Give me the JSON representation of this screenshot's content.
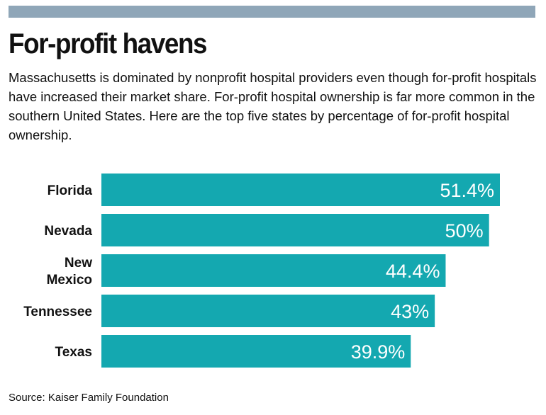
{
  "title": "For-profit havens",
  "description": "Massachusetts is dominated by nonprofit hospital providers even though for-profit hospitals have increased their market share. For-profit hospital ownership is far more common in the southern United States. Here are the top five states by percentage of for-profit hospital ownership.",
  "source": "Source: Kaiser Family Foundation",
  "colors": {
    "bar": "#14a8b0",
    "top_bar": "#8fa6b8"
  },
  "chart_data": {
    "type": "bar",
    "orientation": "horizontal",
    "categories": [
      "Florida",
      "Nevada",
      "New Mexico",
      "Tennessee",
      "Texas"
    ],
    "category_lines": [
      [
        "Florida"
      ],
      [
        "Nevada"
      ],
      [
        "New",
        "Mexico"
      ],
      [
        "Tennessee"
      ],
      [
        "Texas"
      ]
    ],
    "values": [
      51.4,
      50,
      44.4,
      43,
      39.9
    ],
    "value_labels": [
      "51.4%",
      "50%",
      "44.4%",
      "43%",
      "39.9%"
    ],
    "xlim": [
      0,
      51.4
    ],
    "grid": false,
    "legend": "none"
  }
}
